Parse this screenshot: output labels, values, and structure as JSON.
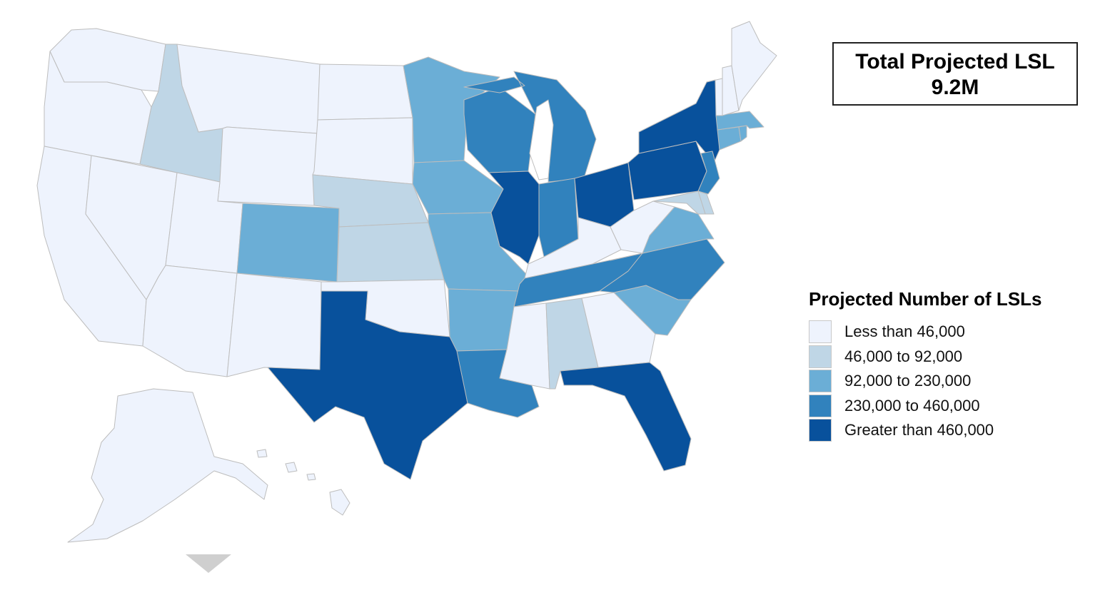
{
  "summary": {
    "line1": "Total Projected LSL",
    "line2": "9.2M"
  },
  "legend": {
    "title": "Projected Number of LSLs",
    "bins": [
      {
        "label": "Less than 46,000",
        "color": "#eef3fd"
      },
      {
        "label": "46,000 to 92,000",
        "color": "#bfd6e6"
      },
      {
        "label": "92,000 to 230,000",
        "color": "#6baed6"
      },
      {
        "label": "230,000 to 460,000",
        "color": "#3182bd"
      },
      {
        "label": "Greater than 460,000",
        "color": "#08519c"
      }
    ]
  },
  "states": {
    "WA": 0,
    "OR": 0,
    "CA": 0,
    "NV": 0,
    "ID": 1,
    "MT": 0,
    "WY": 0,
    "UT": 0,
    "AZ": 0,
    "CO": 2,
    "NM": 0,
    "ND": 0,
    "SD": 0,
    "NE": 1,
    "KS": 1,
    "OK": 0,
    "TX": 4,
    "MN": 2,
    "IA": 2,
    "MO": 2,
    "AR": 2,
    "LA": 3,
    "WI": 3,
    "IL": 4,
    "MI": 3,
    "IN": 3,
    "OH": 4,
    "KY": 0,
    "TN": 3,
    "MS": 0,
    "AL": 1,
    "GA": 0,
    "FL": 4,
    "SC": 2,
    "NC": 3,
    "VA": 2,
    "WV": 0,
    "PA": 4,
    "NY": 4,
    "NJ": 3,
    "DE": 1,
    "MD": 1,
    "CT": 2,
    "RI": 2,
    "MA": 2,
    "VT": 0,
    "NH": 0,
    "ME": 0,
    "AK": 0,
    "HI": 0
  },
  "scroll_icon": "chevron-down-icon"
}
